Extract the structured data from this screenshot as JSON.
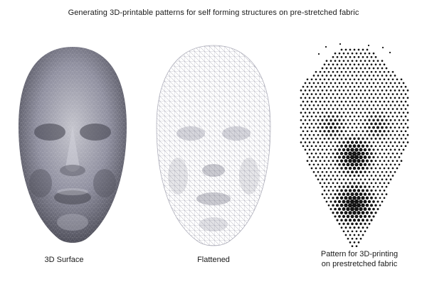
{
  "title": "Generating 3D-printable patterns for self forming structures on pre-stretched fabric",
  "panels": [
    {
      "caption": "3D Surface"
    },
    {
      "caption": "Flattened"
    },
    {
      "caption_line1": "Pattern for 3D-printing",
      "caption_line2": "on prestretched fabric"
    }
  ],
  "colors": {
    "surface_dark": "#4a4a52",
    "surface_light": "#b9b9c2",
    "mesh_line": "#9a9aa8",
    "dot": "#111111"
  }
}
